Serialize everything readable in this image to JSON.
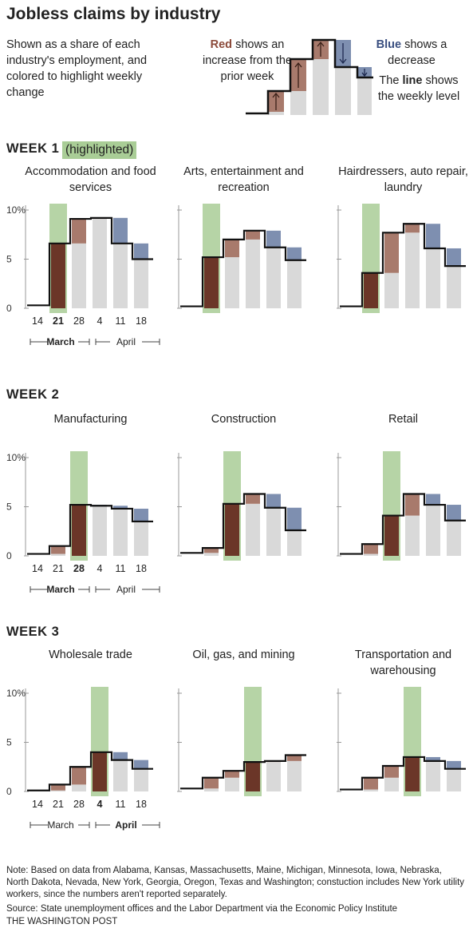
{
  "title": "Jobless claims by industry",
  "subtitle": "Shown as a share of each industry's employment, and colored to highlight weekly change",
  "legend": {
    "red_word": "Red",
    "red_text": " shows an increase from the prior week",
    "blue_word": "Blue",
    "blue_text": " shows a decrease",
    "line_pre": "The ",
    "line_word": "line",
    "line_text": " shows the weekly level"
  },
  "highlighted_label": "(highlighted)",
  "colors": {
    "increase": "#a87a6c",
    "decrease": "#7e8fb0",
    "highlight": "#a9cd96",
    "level_bar": "#d9d9d9",
    "highlight_bar": "#6b3628",
    "line": "#111111"
  },
  "axis": {
    "x_labels": [
      "14",
      "21",
      "28",
      "4",
      "11",
      "18"
    ],
    "months": [
      "March",
      "April"
    ],
    "y_ticks": [
      "10%",
      "5",
      "0"
    ]
  },
  "note": "Note: Based on data from Alabama, Kansas, Massachusetts, Maine, Michigan, Minnesota, Iowa, Nebraska, North Dakota, Nevada, New York, Georgia, Oregon, Texas and Washington; constuction includes New York utility workers, since the numbers aren't reported separately.",
  "source": "Source: State unemployment offices and the Labor Department via the Economic Policy Institute",
  "credit": "THE WASHINGTON POST",
  "chart_data": [
    {
      "type": "bar",
      "week": "WEEK 1",
      "title": "Accommodation and food services",
      "highlight_week": "21",
      "ylim": [
        0,
        10
      ],
      "categories": [
        "14",
        "21",
        "28",
        "4",
        "11",
        "18"
      ],
      "series": [
        {
          "values": [
            0.3,
            6.6,
            9.1,
            9.2,
            6.6,
            5.0
          ]
        }
      ]
    },
    {
      "type": "bar",
      "week": "WEEK 1",
      "title": "Arts, entertainment and recreation",
      "highlight_week": "21",
      "ylim": [
        0,
        10
      ],
      "categories": [
        "14",
        "21",
        "28",
        "4",
        "11",
        "18"
      ],
      "series": [
        {
          "values": [
            0.2,
            5.2,
            7.0,
            7.9,
            6.2,
            4.9
          ]
        }
      ]
    },
    {
      "type": "bar",
      "week": "WEEK 1",
      "title": "Hairdressers, auto repair, laundry",
      "highlight_week": "21",
      "ylim": [
        0,
        10
      ],
      "categories": [
        "14",
        "21",
        "28",
        "4",
        "11",
        "18"
      ],
      "series": [
        {
          "values": [
            0.2,
            3.6,
            7.7,
            8.6,
            6.1,
            4.3
          ]
        }
      ]
    },
    {
      "type": "bar",
      "week": "WEEK 2",
      "title": "Manufacturing",
      "highlight_week": "28",
      "ylim": [
        0,
        10
      ],
      "categories": [
        "14",
        "21",
        "28",
        "4",
        "11",
        "18"
      ],
      "series": [
        {
          "values": [
            0.2,
            1.0,
            5.2,
            5.1,
            4.8,
            3.5
          ]
        }
      ]
    },
    {
      "type": "bar",
      "week": "WEEK 2",
      "title": "Construction",
      "highlight_week": "28",
      "ylim": [
        0,
        10
      ],
      "categories": [
        "14",
        "21",
        "28",
        "4",
        "11",
        "18"
      ],
      "series": [
        {
          "values": [
            0.3,
            0.8,
            5.3,
            6.3,
            4.9,
            2.6
          ]
        }
      ]
    },
    {
      "type": "bar",
      "week": "WEEK 2",
      "title": "Retail",
      "highlight_week": "28",
      "ylim": [
        0,
        10
      ],
      "categories": [
        "14",
        "21",
        "28",
        "4",
        "11",
        "18"
      ],
      "series": [
        {
          "values": [
            0.2,
            1.2,
            4.1,
            6.3,
            5.2,
            3.6
          ]
        }
      ]
    },
    {
      "type": "bar",
      "week": "WEEK 3",
      "title": "Wholesale trade",
      "highlight_week": "4",
      "ylim": [
        0,
        10
      ],
      "categories": [
        "14",
        "21",
        "28",
        "4",
        "11",
        "18"
      ],
      "series": [
        {
          "values": [
            0.1,
            0.7,
            2.5,
            4.0,
            3.2,
            2.3
          ]
        }
      ]
    },
    {
      "type": "bar",
      "week": "WEEK 3",
      "title": "Oil, gas, and mining",
      "highlight_week": "4",
      "ylim": [
        0,
        10
      ],
      "categories": [
        "14",
        "21",
        "28",
        "4",
        "11",
        "18"
      ],
      "series": [
        {
          "values": [
            0.3,
            1.4,
            2.1,
            3.0,
            3.1,
            3.7
          ]
        }
      ]
    },
    {
      "type": "bar",
      "week": "WEEK 3",
      "title": "Transportation and warehousing",
      "highlight_week": "4",
      "ylim": [
        0,
        10
      ],
      "categories": [
        "14",
        "21",
        "28",
        "4",
        "11",
        "18"
      ],
      "series": [
        {
          "values": [
            0.2,
            1.4,
            2.6,
            3.5,
            3.1,
            2.3
          ]
        }
      ]
    }
  ]
}
